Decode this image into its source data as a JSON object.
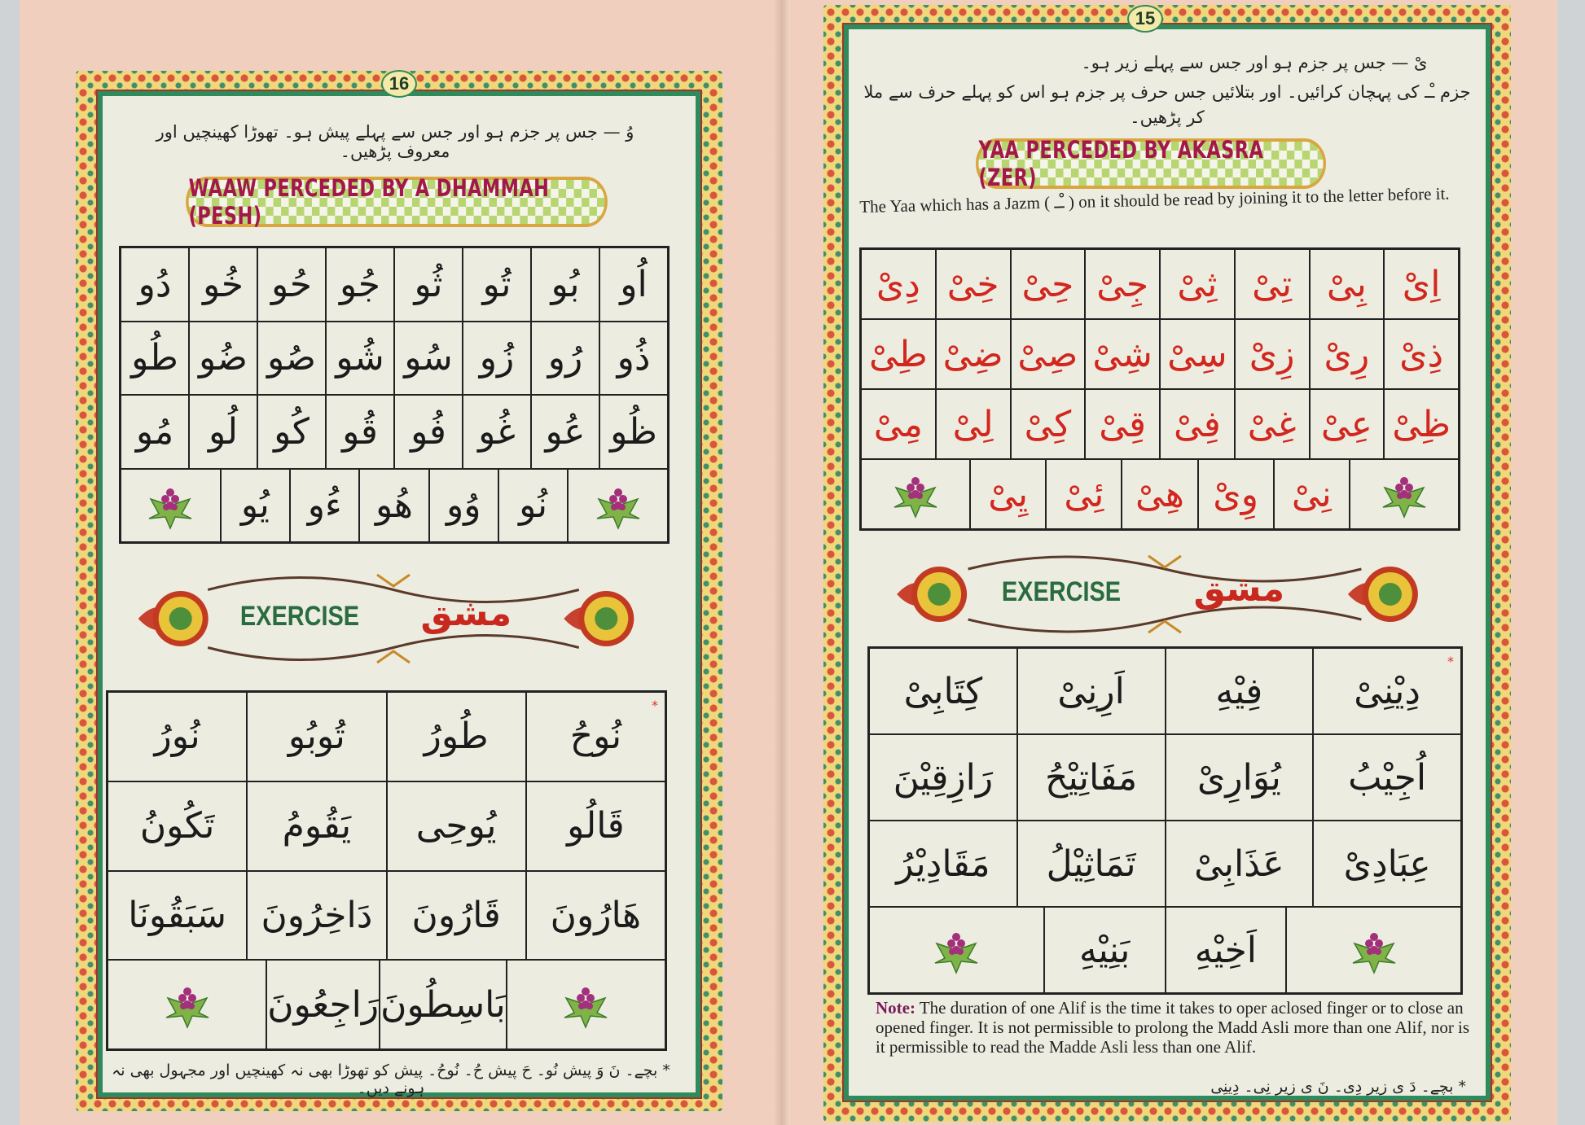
{
  "colors": {
    "border_green": "#2f8a5c",
    "banner_text": "#a3174a",
    "exercise_green": "#2a6b3f",
    "exercise_red": "#c8281e",
    "waw_blue": "#2b3a9a",
    "yaa_red": "#d2261e",
    "page_cream": "#ecede0",
    "paper_peach": "#f0cfbf"
  },
  "left_page": {
    "page_number": "16",
    "instruction_urdu": "وُ — جس پر جزم ہو اور جس سے پہلے پیش ہو۔ تھوڑا کھینچیں اور معروف پڑھیں۔",
    "banner_title": "WAAW PERCEDED BY A DHAMMAH (PESH)",
    "syllables": [
      [
        "اُو",
        "بُو",
        "تُو",
        "ثُو",
        "جُو",
        "حُو",
        "خُو",
        "دُو"
      ],
      [
        "ذُو",
        "رُو",
        "زُو",
        "سُو",
        "شُو",
        "صُو",
        "ضُو",
        "طُو"
      ],
      [
        "ظُو",
        "عُو",
        "غُو",
        "فُو",
        "قُو",
        "كُو",
        "لُو",
        "مُو"
      ],
      [
        "flower",
        "نُو",
        "وُو",
        "هُو",
        "ءُو",
        "يُو",
        "flower"
      ]
    ],
    "exercise_label": "EXERCISE",
    "exercise_label_arabic": "مشق",
    "words": [
      [
        "نُوحُ",
        "طُورُ",
        "تُوبُو",
        "نُورُ"
      ],
      [
        "قَالُو",
        "يُوحِى",
        "يَقُومُ",
        "تَكُونُ"
      ],
      [
        "هَارُونَ",
        "قَارُونَ",
        "دَاخِرُونَ",
        "سَبَقُونَا"
      ],
      [
        "flower",
        "بَاسِطُونَ",
        "رَاجِعُونَ",
        "flower"
      ]
    ],
    "footnote_urdu": "* بچے۔ نَ وَ پیش نُو۔ حَ پیش حُ۔ نُوحُ۔ پیش کو تھوڑا بھی نہ کھینچیں اور مجہول بھی نہ ہونے دیں۔"
  },
  "right_page": {
    "page_number": "15",
    "instruction_urdu_1": "یْ — جس پر جزم ہو اور جس سے پہلے زیر ہو۔",
    "instruction_urdu_2": "جزم ـْـ کی پہچان کرائیں۔ اور بتلائیں جس حرف پر جزم ہو اس کو پہلے حرف سے ملا کر پڑھیں۔",
    "banner_title": "YAA PERCEDED BY AKASRA (ZER)",
    "english_text": "The Yaa which has a Jazm ( ـْـ ) on it should be read by joining it to the letter before it.",
    "syllables": [
      [
        "اِیْ",
        "بِیْ",
        "تِیْ",
        "ثِیْ",
        "جِیْ",
        "حِیْ",
        "خِیْ",
        "دِیْ"
      ],
      [
        "ذِیْ",
        "رِیْ",
        "زِیْ",
        "سِیْ",
        "شِیْ",
        "صِیْ",
        "ضِیْ",
        "طِیْ"
      ],
      [
        "ظِیْ",
        "عِیْ",
        "غِیْ",
        "فِیْ",
        "قِیْ",
        "کِیْ",
        "لِیْ",
        "مِیْ"
      ],
      [
        "flower",
        "نِیْ",
        "وِیْ",
        "هِیْ",
        "ئِیْ",
        "يِیْ",
        "flower"
      ]
    ],
    "exercise_label": "EXERCISE",
    "exercise_label_arabic": "مشق",
    "words": [
      [
        "دِیْنِیْ",
        "فِیْهِ",
        "اَرِنِیْ",
        "كِتَابِیْ"
      ],
      [
        "اُجِیْبُ",
        "يُوَارِیْ",
        "مَفَاتِیْحُ",
        "رَازِقِیْنَ"
      ],
      [
        "عِبَادِیْ",
        "عَذَابِیْ",
        "تَمَاثِیْلُ",
        "مَقَادِیْرُ"
      ],
      [
        "flower",
        "اَخِیْهِ",
        "بَنِیْهِ",
        "flower"
      ]
    ],
    "note_label": "Note:",
    "note_text": "The duration of one Alif is the time it takes to oper aclosed finger or to close an opened finger. It is not permissible to prolong the Madd Asli more than one Alif, nor is it permissible to read the Madde Asli less than one Alif.",
    "footnote_urdu": "* بچے۔ دَ ی زیر دِی۔ نَ ی زیر نِی۔ دِینِی"
  }
}
